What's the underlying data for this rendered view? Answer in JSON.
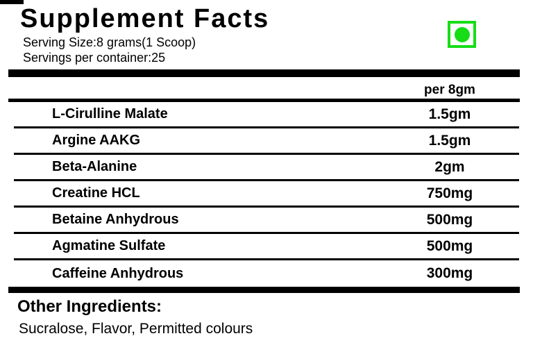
{
  "header": {
    "title": "Supplement Facts",
    "serving_size": "Serving Size:8 grams(1 Scoop)",
    "servings_per_container": "Servings per container:25"
  },
  "veg_mark": {
    "name": "vegetarian-mark",
    "color": "#16dd16"
  },
  "table": {
    "column_header": "per 8gm",
    "rows": [
      {
        "name": "L-Cirulline Malate",
        "amount": "1.5gm"
      },
      {
        "name": "Argine AAKG",
        "amount": "1.5gm"
      },
      {
        "name": "Beta-Alanine",
        "amount": "2gm"
      },
      {
        "name": "Creatine HCL",
        "amount": "750mg"
      },
      {
        "name": "Betaine Anhydrous",
        "amount": "500mg"
      },
      {
        "name": "Agmatine Sulfate",
        "amount": "500mg"
      },
      {
        "name": "Caffeine Anhydrous",
        "amount": "300mg"
      }
    ]
  },
  "footer": {
    "other_ingredients_label": "Other Ingredients:",
    "other_ingredients_value": "Sucralose, Flavor, Permitted colours"
  },
  "colors": {
    "text": "#000000",
    "veg_green": "#16dd16"
  }
}
